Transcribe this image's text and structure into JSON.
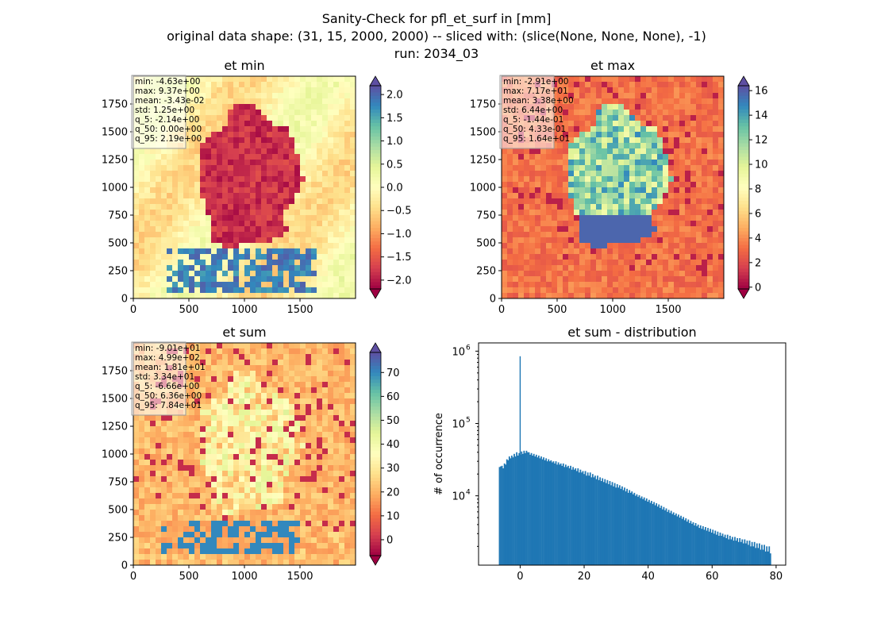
{
  "figure": {
    "suptitle_line1": "Sanity-Check for pfl_et_surf in [mm]",
    "suptitle_line2": "original data shape: (31, 15, 2000, 2000) -- sliced with: (slice(None, None, None), -1)",
    "suptitle_line3": "run: 2034_03"
  },
  "colors": {
    "colormap": [
      "#9e0142",
      "#d53e4f",
      "#f46d43",
      "#fdae61",
      "#fee08b",
      "#ffffbf",
      "#e6f598",
      "#abdda4",
      "#66c2a5",
      "#3288bd",
      "#5e4fa2"
    ],
    "histogram_fill": "#1f77b4"
  },
  "chart_data": [
    {
      "type": "heatmap",
      "title": "et min",
      "colormap": "Spectral",
      "xlim": [
        0,
        2000
      ],
      "ylim": [
        0,
        2000
      ],
      "xticks": [
        0,
        500,
        1000,
        1500
      ],
      "yticks": [
        0,
        250,
        500,
        750,
        1000,
        1250,
        1500,
        1750
      ],
      "colorbar_range": [
        -2.19,
        2.19
      ],
      "colorbar_ticks": [
        "2.0",
        "1.5",
        "1.0",
        "0.5",
        "0.0",
        "−0.5",
        "−1.0",
        "−1.5",
        "−2.0"
      ],
      "colorbar_tick_values": [
        2.0,
        1.5,
        1.0,
        0.5,
        0.0,
        -0.5,
        -1.0,
        -1.5,
        -2.0
      ],
      "stats": [
        "min: -4.63e+00",
        "max: 9.37e+00",
        "mean: -3.43e-02",
        "std: 1.25e+00",
        "q_5: -2.14e+00",
        "q_50: 0.00e+00",
        "q_95: 2.19e+00"
      ]
    },
    {
      "type": "heatmap",
      "title": "et max",
      "colormap": "Spectral",
      "xlim": [
        0,
        2000
      ],
      "ylim": [
        0,
        2000
      ],
      "xticks": [
        0,
        500,
        1000,
        1500
      ],
      "yticks": [
        0,
        250,
        500,
        750,
        1000,
        1250,
        1500,
        1750
      ],
      "colorbar_range": [
        -0.144,
        16.4
      ],
      "colorbar_ticks": [
        "16",
        "14",
        "12",
        "10",
        "8",
        "6",
        "4",
        "2",
        "0"
      ],
      "colorbar_tick_values": [
        16,
        14,
        12,
        10,
        8,
        6,
        4,
        2,
        0
      ],
      "stats": [
        "min: -2.91e+00",
        "max: 7.17e+01",
        "mean: 3.38e+00",
        "std: 6.44e+00",
        "q_5: -1.44e-01",
        "q_50: 4.33e-01",
        "q_95: 1.64e+01"
      ]
    },
    {
      "type": "heatmap",
      "title": "et sum",
      "colormap": "Spectral",
      "xlim": [
        0,
        2000
      ],
      "ylim": [
        0,
        2000
      ],
      "xticks": [
        0,
        500,
        1000,
        1500
      ],
      "yticks": [
        0,
        250,
        500,
        750,
        1000,
        1250,
        1500,
        1750
      ],
      "colorbar_range": [
        -6.66,
        78.4
      ],
      "colorbar_ticks": [
        "70",
        "60",
        "50",
        "40",
        "30",
        "20",
        "10",
        "0"
      ],
      "colorbar_tick_values": [
        70,
        60,
        50,
        40,
        30,
        20,
        10,
        0
      ],
      "stats": [
        "min: -9.01e+01",
        "max: 4.99e+02",
        "mean: 1.81e+01",
        "std: 3.34e+01",
        "q_5: -6.66e+00",
        "q_50: 6.36e+00",
        "q_95: 7.84e+01"
      ]
    },
    {
      "type": "bar",
      "title": "et sum - distribution",
      "ylabel": "# of occurrence",
      "xlim": [
        -13,
        83
      ],
      "ylog": true,
      "ylim": [
        1100,
        1300000
      ],
      "xticks": [
        "0",
        "20",
        "40",
        "60",
        "80"
      ],
      "xtick_values": [
        0,
        20,
        40,
        60,
        80
      ],
      "yticks": [
        "10",
        "10",
        "10"
      ],
      "ytick_exponents": [
        "4",
        "5",
        "6"
      ],
      "ytick_values": [
        10000,
        100000,
        1000000
      ],
      "bin_start": -6.66,
      "bin_end": 78.4,
      "spike": {
        "x": 0,
        "value": 850000
      },
      "values": [
        25000,
        25500,
        26000,
        24000,
        28000,
        27000,
        32000,
        31000,
        35000,
        33000,
        36000,
        34000,
        38000,
        35000,
        40000,
        36000,
        39000,
        37000,
        41000,
        38000,
        42000,
        39000,
        42000,
        40000,
        40000,
        37000,
        39000,
        36000,
        38000,
        35000,
        37000,
        34000,
        36000,
        33000,
        35000,
        32000,
        34000,
        31000,
        33000,
        30000,
        32000,
        30000,
        31000,
        29000,
        30000,
        28000,
        30000,
        27000,
        29000,
        27000,
        28000,
        26000,
        28000,
        25000,
        27000,
        25000,
        26000,
        24000,
        26000,
        23000,
        25000,
        23000,
        24000,
        22000,
        24000,
        21000,
        23000,
        21000,
        22000,
        20000,
        22000,
        19000,
        21000,
        19000,
        21000,
        18000,
        20000,
        18000,
        19000,
        17000,
        19000,
        16500,
        18000,
        16000,
        17500,
        15500,
        17000,
        15000,
        16500,
        14500,
        16000,
        14000,
        15500,
        13500,
        15000,
        13000,
        14500,
        13000,
        14000,
        12500,
        13500,
        12000,
        13000,
        11500,
        12500,
        11000,
        12000,
        11000,
        11500,
        10500,
        11000,
        10000,
        10500,
        9700,
        10200,
        9300,
        9800,
        9000,
        9500,
        8600,
        9200,
        8300,
        8800,
        8000,
        8500,
        7700,
        8200,
        7400,
        7900,
        7100,
        7600,
        6800,
        7300,
        6500,
        7000,
        6300,
        6700,
        6000,
        6400,
        5800,
        6200,
        5600,
        5900,
        5400,
        5700,
        5200,
        5500,
        5000,
        5300,
        4800,
        5100,
        4600,
        4900,
        4400,
        4700,
        4200,
        4500,
        4100,
        4300,
        3900,
        4200,
        3800,
        4000,
        3600,
        3900,
        3500,
        3800,
        3400,
        3700,
        3300,
        3600,
        3200,
        3500,
        3100,
        3400,
        3000,
        3300,
        2900,
        3200,
        2800,
        3100,
        2800,
        3000,
        2700,
        2900,
        2600,
        2900,
        2500,
        2800,
        2500,
        2700,
        2400,
        2700,
        2400,
        2600,
        2300,
        2600,
        2300,
        2500,
        2200,
        2500,
        2200,
        2400,
        2100,
        2400,
        2000,
        2300,
        2000,
        2300,
        1900,
        2200,
        1900,
        2200,
        1800,
        2100,
        1800,
        2100,
        1700,
        2000,
        1700,
        2000,
        1600
      ]
    }
  ]
}
